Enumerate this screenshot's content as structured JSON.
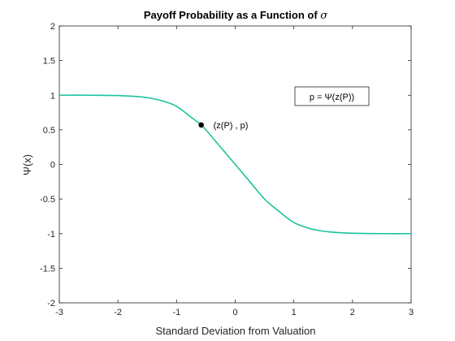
{
  "chart_data": {
    "type": "line",
    "title": "Payoff Probability as a Function of ",
    "title_symbol": "σ",
    "xlabel": "Standard Deviation from Valuation",
    "ylabel": "Ψ(x)",
    "xlim": [
      -3,
      3
    ],
    "ylim": [
      -2,
      2
    ],
    "xticks": [
      "-3",
      "-2",
      "-1",
      "0",
      "1",
      "2",
      "3"
    ],
    "yticks": [
      "2",
      "1.5",
      "1",
      "0.5",
      "0",
      "-0.5",
      "-1",
      "-1.5",
      "-2"
    ],
    "grid": false,
    "series": [
      {
        "color": "#1bc39c",
        "x": [
          -3,
          -2.5,
          -2,
          -1.75,
          -1.5,
          -1.25,
          -1,
          -0.75,
          -0.58,
          -0.5,
          -0.25,
          0,
          0.25,
          0.5,
          0.75,
          1,
          1.25,
          1.5,
          1.75,
          2,
          2.5,
          3
        ],
        "y": [
          1.0,
          1.0,
          0.995,
          0.985,
          0.965,
          0.92,
          0.84,
          0.68,
          0.57,
          0.5,
          0.25,
          0.0,
          -0.25,
          -0.5,
          -0.68,
          -0.84,
          -0.92,
          -0.965,
          -0.985,
          -0.995,
          -1.0,
          -1.0
        ]
      }
    ],
    "point": {
      "x": -0.58,
      "y": 0.57,
      "label": "(z(P) , p)",
      "color": "#000000"
    },
    "legend": {
      "text": "p = Ψ(z(P))",
      "placement": "top-right"
    }
  }
}
